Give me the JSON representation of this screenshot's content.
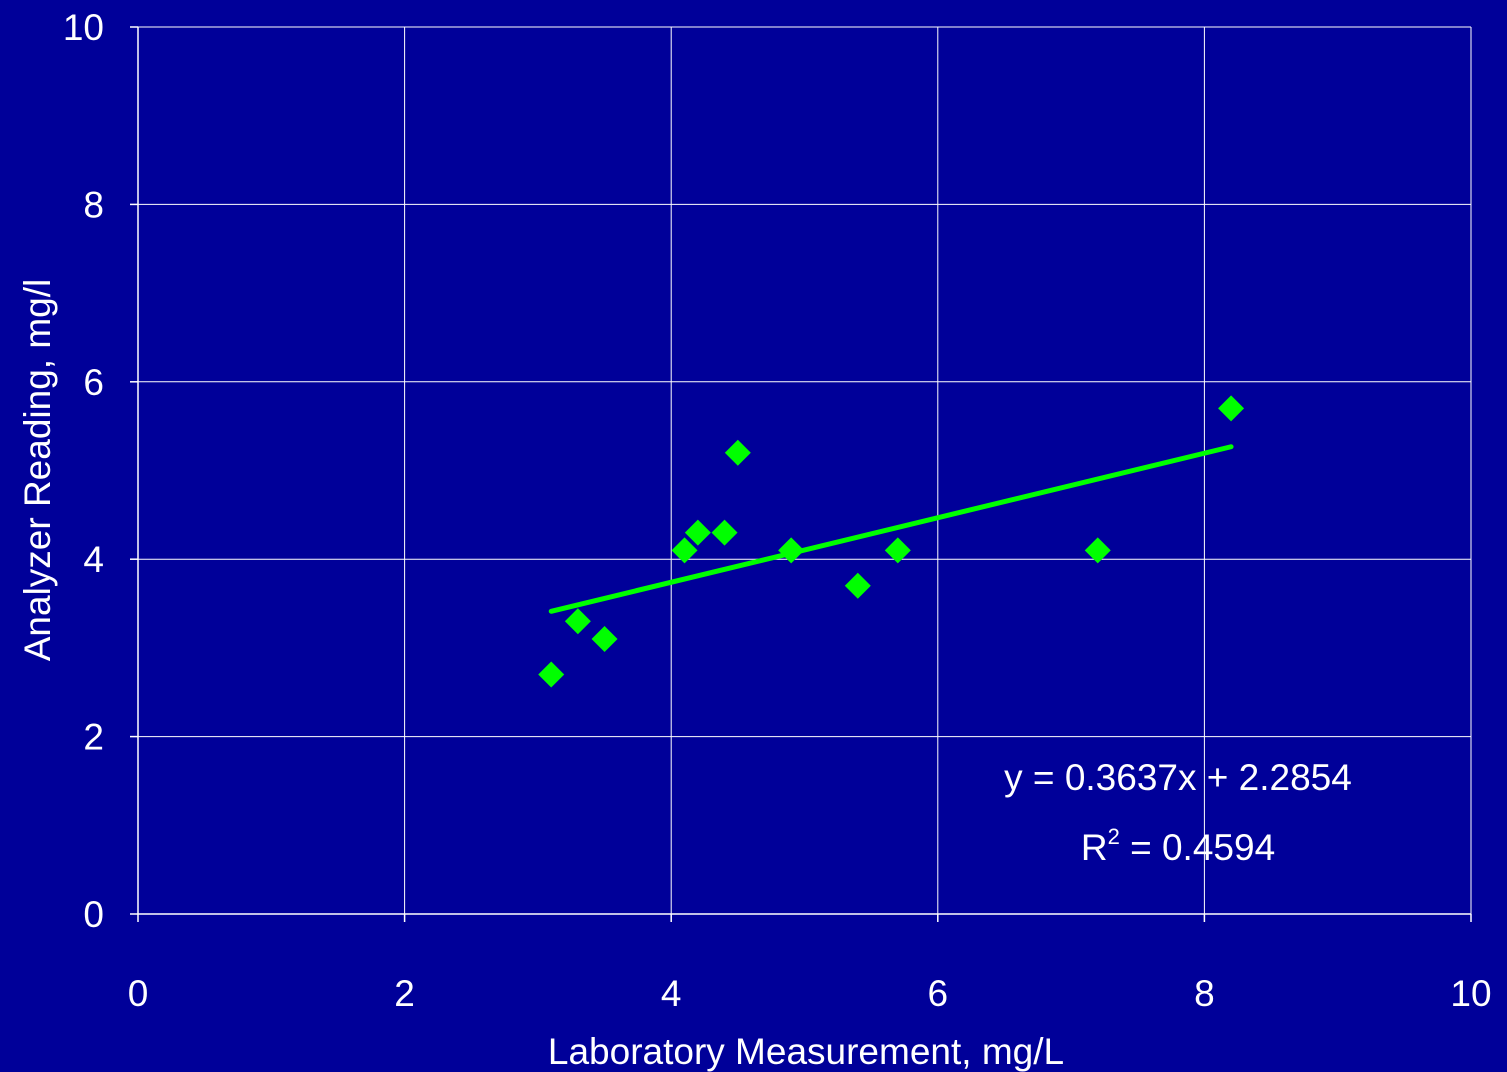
{
  "chart_data": {
    "type": "scatter",
    "title": "",
    "xlabel": "Laboratory Measurement, mg/L",
    "ylabel": "Analyzer Reading, mg/l",
    "xlim": [
      0,
      10
    ],
    "ylim": [
      0,
      10
    ],
    "xticks": [
      0,
      2,
      4,
      6,
      8,
      10
    ],
    "yticks": [
      0,
      2,
      4,
      6,
      8,
      10
    ],
    "grid": true,
    "legend": "none",
    "series": [
      {
        "points": [
          {
            "x": 3.1,
            "y": 2.7
          },
          {
            "x": 3.3,
            "y": 3.3
          },
          {
            "x": 3.5,
            "y": 3.1
          },
          {
            "x": 4.1,
            "y": 4.1
          },
          {
            "x": 4.2,
            "y": 4.3
          },
          {
            "x": 4.4,
            "y": 4.3
          },
          {
            "x": 4.5,
            "y": 5.2
          },
          {
            "x": 4.9,
            "y": 4.1
          },
          {
            "x": 5.4,
            "y": 3.7
          },
          {
            "x": 5.7,
            "y": 4.1
          },
          {
            "x": 7.2,
            "y": 4.1
          },
          {
            "x": 8.2,
            "y": 5.7
          }
        ]
      }
    ],
    "trendline": {
      "type": "linear",
      "slope": 0.3637,
      "intercept": 2.2854,
      "x_range": [
        3.1,
        8.2
      ],
      "equation_label": "y = 0.3637x + 2.2854",
      "r2_prefix": "R",
      "r2_superscript": "2",
      "r2_value_text": " = 0.4594"
    },
    "colors": {
      "background": "#000099",
      "grid": "#ffffff",
      "marker": "#00ff00",
      "trendline": "#00ff00",
      "text": "#ffffff"
    }
  }
}
